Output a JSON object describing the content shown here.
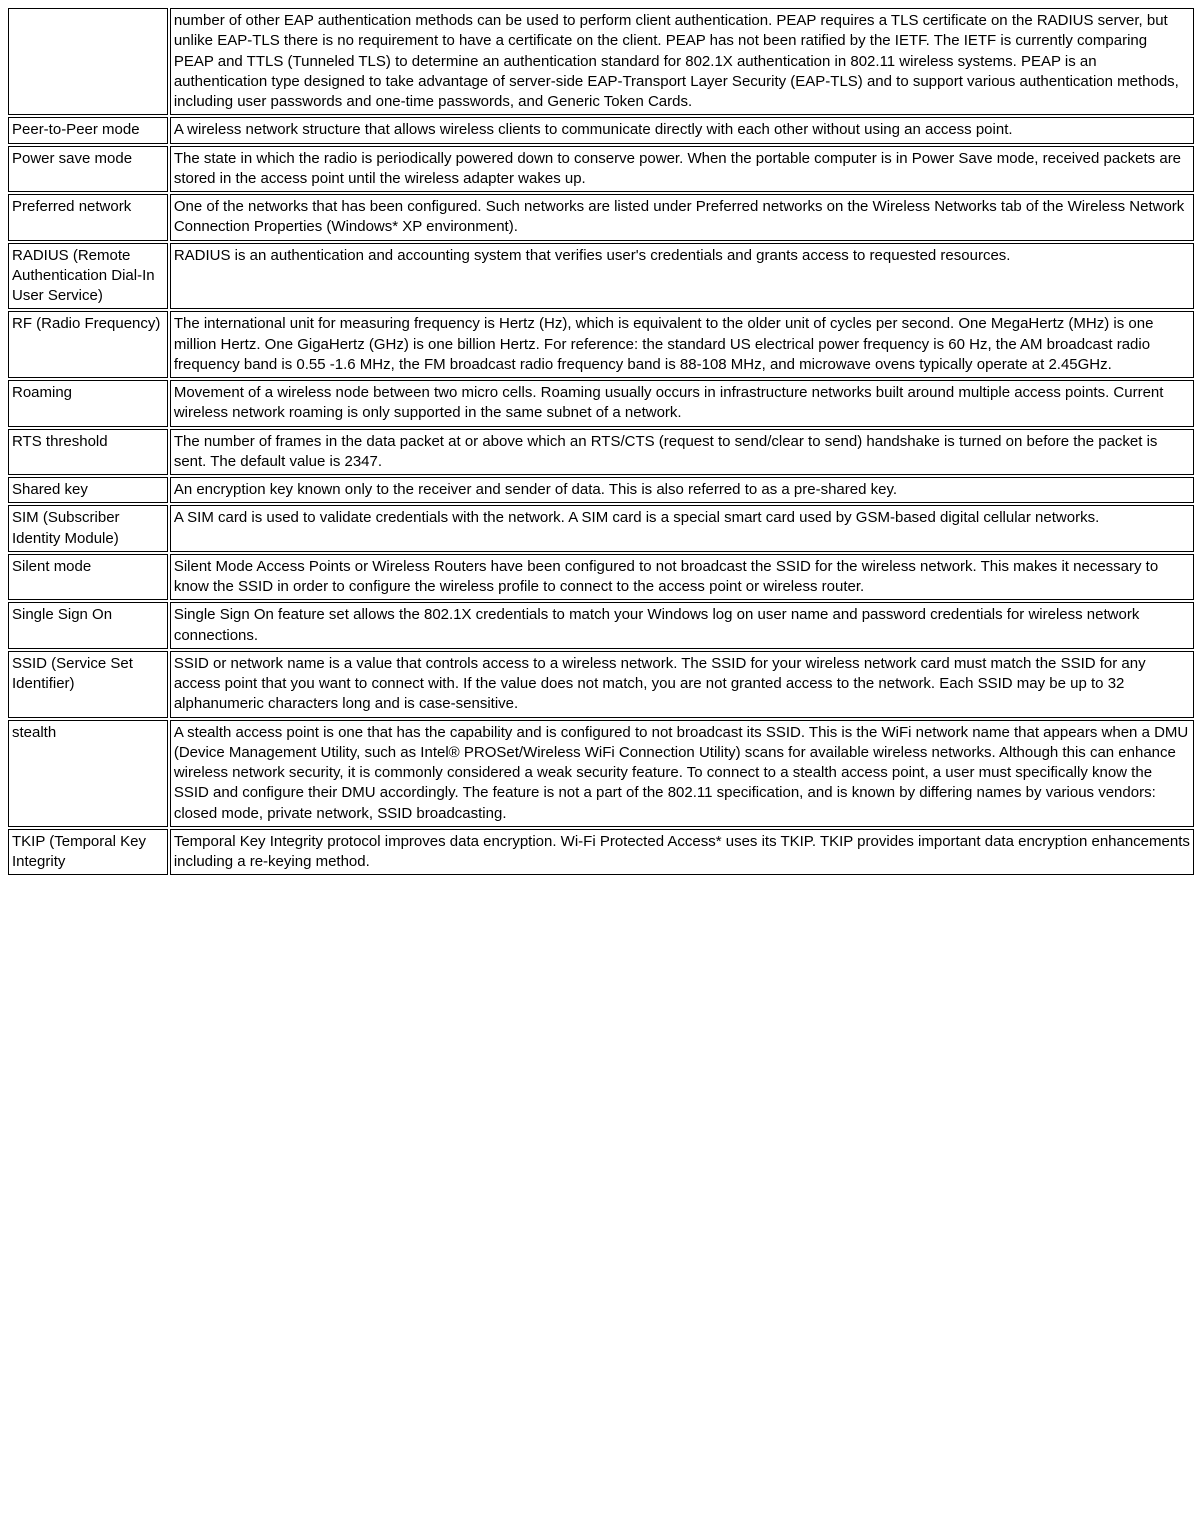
{
  "rows": [
    {
      "term": "",
      "def": "number of other EAP authentication methods can be used to perform client authentication. PEAP requires a TLS certificate on the RADIUS server, but unlike EAP-TLS there is no requirement to have a certificate on the client. PEAP has not been ratified by the IETF. The IETF is currently comparing PEAP and TTLS (Tunneled TLS) to determine an authentication standard for 802.1X authentication in 802.11 wireless systems. PEAP is an authentication type designed to take advantage of server-side EAP-Transport Layer Security (EAP-TLS) and to support various authentication methods, including user passwords and one-time passwords, and Generic Token Cards."
    },
    {
      "term": "Peer-to-Peer mode",
      "def": "A wireless network structure that allows wireless clients to communicate directly with each other without using an access point."
    },
    {
      "term": "Power save mode",
      "def": "The state in which the radio is periodically powered down to conserve power. When the portable computer is in Power Save mode, received packets are stored in the access point until the wireless adapter wakes up."
    },
    {
      "term": "Preferred network",
      "def": "One of the networks that has been configured. Such networks are listed under Preferred networks on the Wireless Networks tab of the Wireless Network Connection Properties (Windows* XP environment)."
    },
    {
      "term": "RADIUS (Remote Authentication Dial-In User Service)",
      "def": "RADIUS is an authentication and accounting system that verifies user's credentials and grants access to requested resources."
    },
    {
      "term": "RF (Radio Frequency)",
      "def": "The international unit for measuring frequency is Hertz (Hz), which is equivalent to the older unit of cycles per second. One MegaHertz (MHz) is one million Hertz. One GigaHertz (GHz) is one billion Hertz. For reference: the standard US electrical power frequency is 60 Hz, the AM broadcast radio frequency band is 0.55 -1.6 MHz, the FM broadcast radio frequency band is 88-108 MHz, and microwave ovens typically operate at 2.45GHz."
    },
    {
      "term": "Roaming",
      "def": "Movement of a wireless node between two micro cells. Roaming usually occurs in infrastructure networks built around multiple access points. Current wireless network roaming is only supported in the same subnet of a network."
    },
    {
      "term": "RTS threshold",
      "def": "The number of frames in the data packet at or above which an RTS/CTS (request to send/clear to send) handshake is turned on before the packet is sent. The default value is 2347."
    },
    {
      "term": "Shared key",
      "def": "An encryption key known only to the receiver and sender of data. This is also referred to as a pre-shared key."
    },
    {
      "term": "SIM (Subscriber Identity Module)",
      "def": "A SIM card is used to validate credentials with the network. A SIM card is a special smart card used by GSM-based digital cellular networks."
    },
    {
      "term": "Silent mode",
      "def": "Silent Mode Access Points or Wireless Routers have been configured to not broadcast the SSID for the wireless network. This makes it necessary to know the SSID in order to configure the wireless profile to connect to the access point or wireless router."
    },
    {
      "term": "Single Sign On",
      "def": "Single Sign On feature set allows the 802.1X credentials to match your Windows log on user name and password credentials for wireless network connections."
    },
    {
      "term": "SSID (Service Set Identifier)",
      "def": "SSID or network name is a value that controls access to a wireless network. The SSID for your wireless network card must match the SSID for any access point that you want to connect with. If the value does not match, you are not granted access to the network. Each SSID may be up to 32 alphanumeric characters long and is case-sensitive."
    },
    {
      "term": "stealth",
      "def": "A stealth access point is one that has the capability and is configured to not broadcast its SSID. This is the WiFi network name that appears when a DMU (Device Management Utility, such as Intel® PROSet/Wireless WiFi Connection Utility) scans for available wireless networks. Although this can enhance wireless network security, it is commonly considered a weak security feature. To connect to a stealth access point, a user must specifically know the SSID and configure their DMU accordingly. The feature is not a part of the 802.11 specification, and is known by differing names by various vendors: closed mode, private network, SSID broadcasting."
    },
    {
      "term": "TKIP (Temporal Key Integrity",
      "def": "Temporal Key Integrity protocol improves data encryption. Wi-Fi Protected Access* uses its TKIP. TKIP provides important data encryption enhancements including a re-keying method."
    }
  ]
}
